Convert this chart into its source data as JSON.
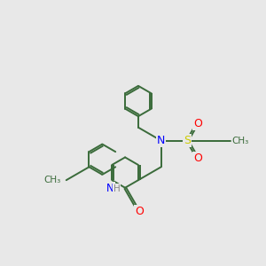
{
  "background_color": "#e8e8e8",
  "bond_color": "#3a6b3a",
  "N_color": "#0000ff",
  "O_color": "#ff0000",
  "S_color": "#cccc00",
  "line_width": 1.4,
  "dbo": 0.035,
  "figsize": [
    3.0,
    3.0
  ],
  "dpi": 100,
  "xlim": [
    0,
    10
  ],
  "ylim": [
    0,
    10
  ]
}
